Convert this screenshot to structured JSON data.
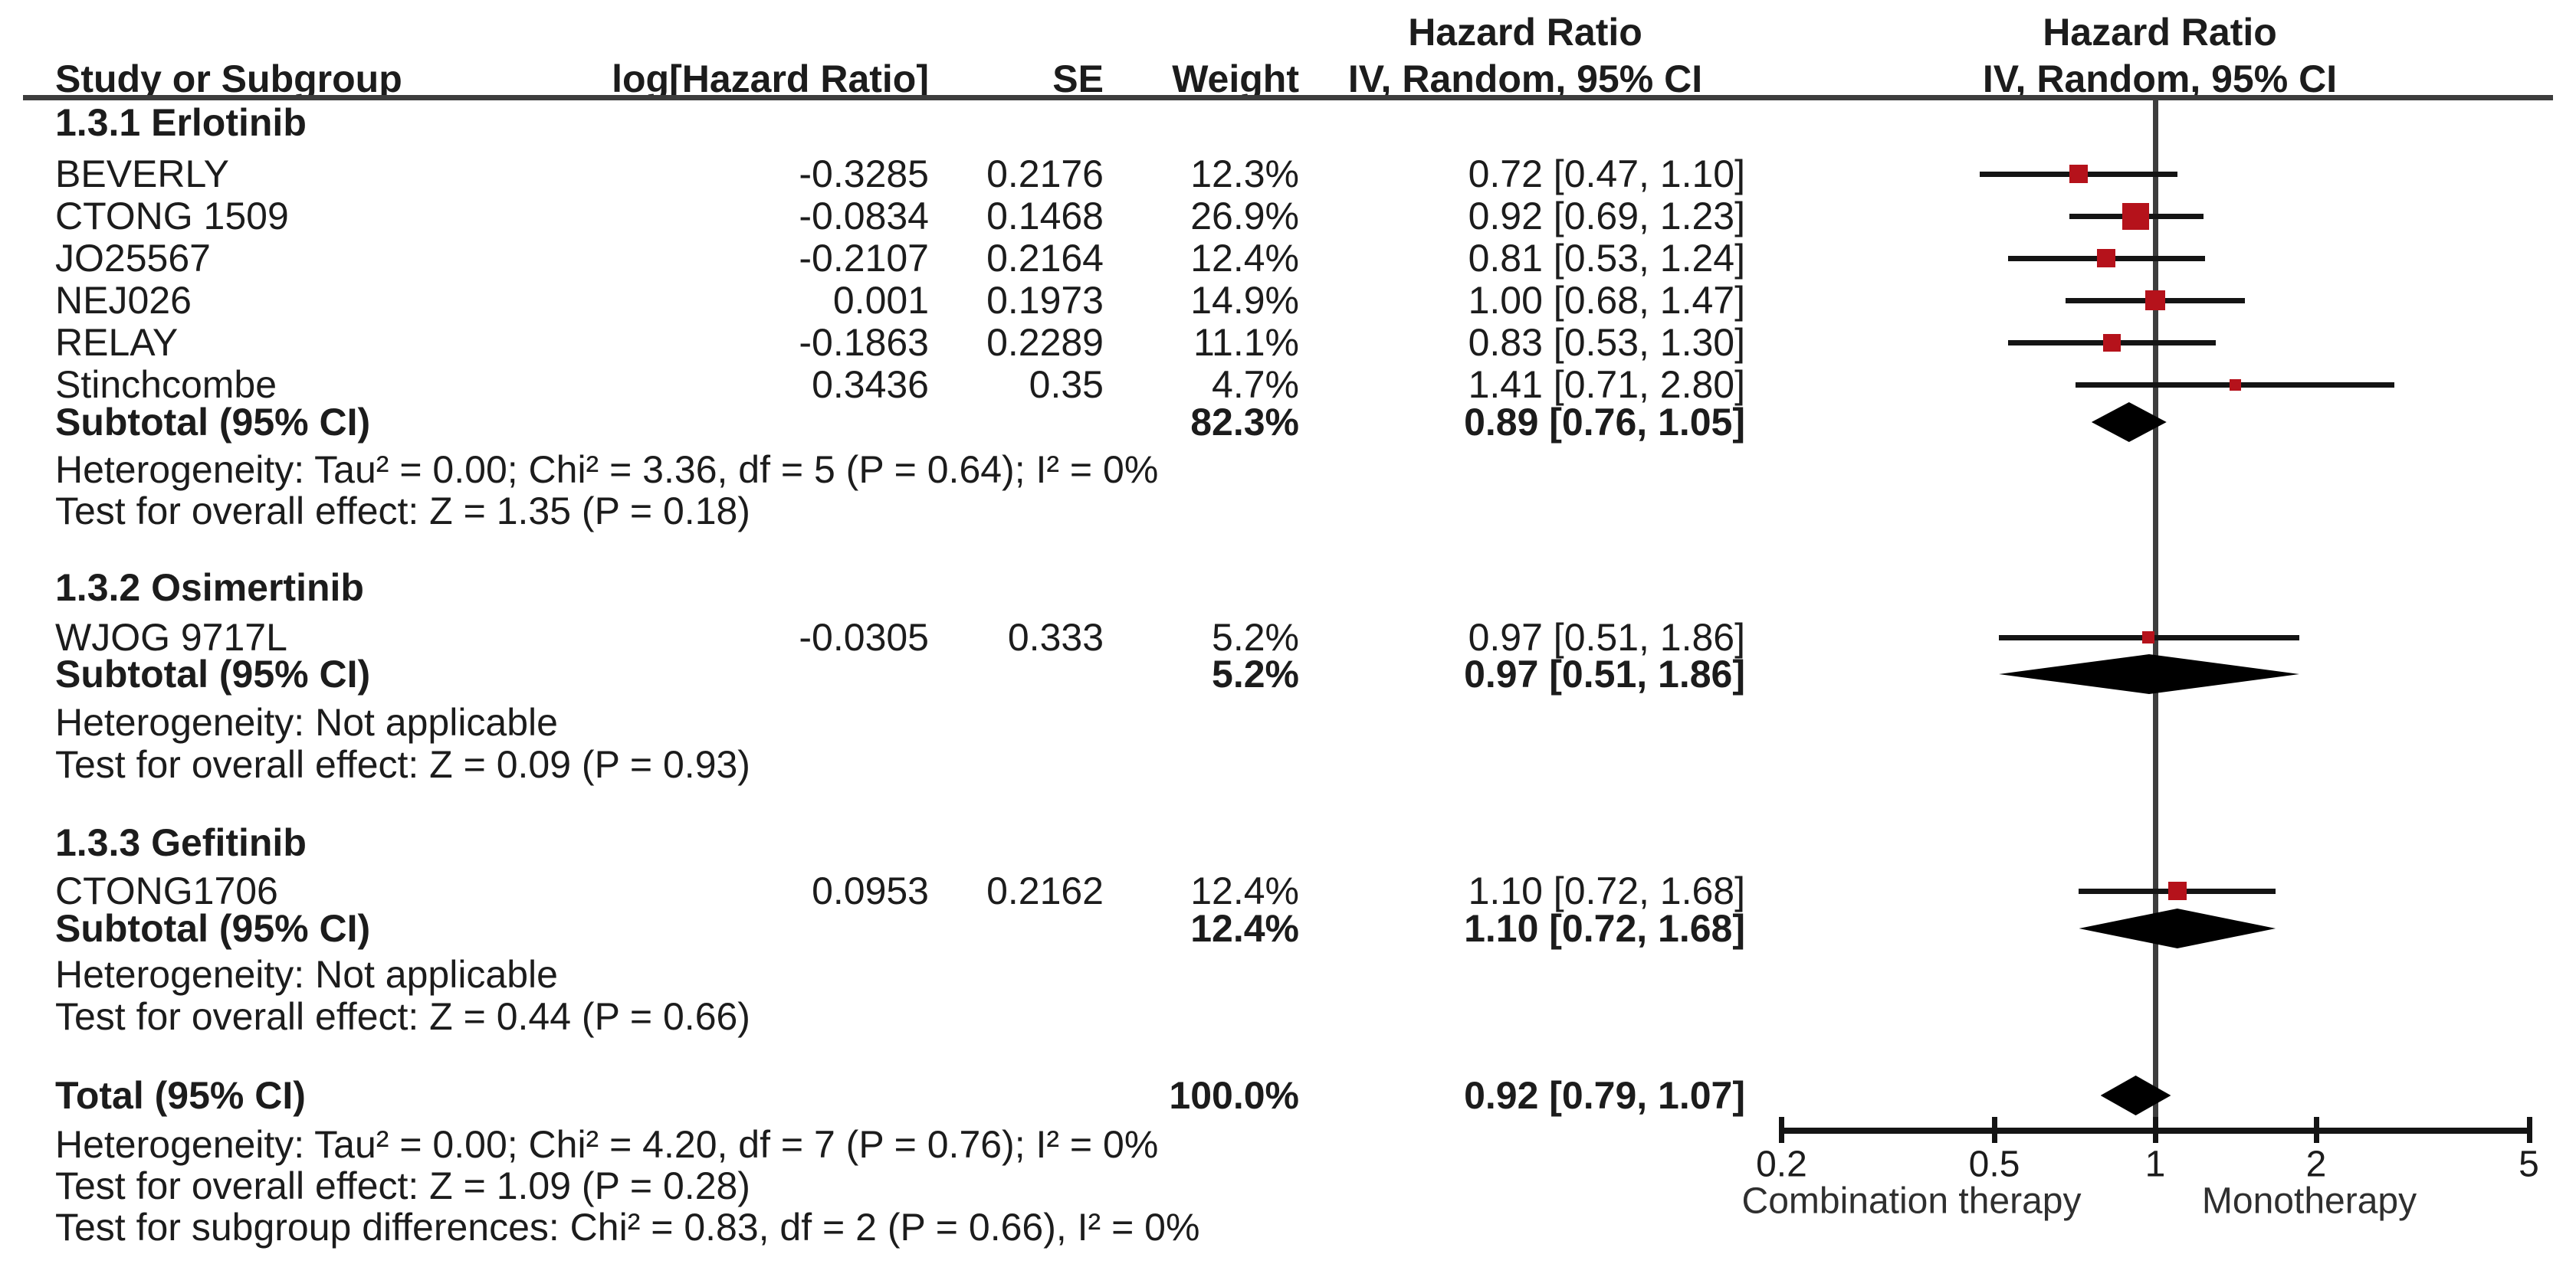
{
  "columns": {
    "study": "Study or Subgroup",
    "log_hr": "log[Hazard Ratio]",
    "se": "SE",
    "weight": "Weight"
  },
  "effect": {
    "line1": "Hazard Ratio",
    "line2": "IV, Random, 95% CI"
  },
  "colors": {
    "marker_red": "#b5121b",
    "diamond_black": "#000000",
    "line_gray": "#3d3d3d"
  },
  "chart_data": {
    "type": "forest-plot",
    "effect_measure": "Hazard Ratio",
    "model": "IV, Random, 95% CI",
    "scale": "log",
    "axis": {
      "ticks": [
        {
          "value": 0.2,
          "label": "0.2"
        },
        {
          "value": 0.5,
          "label": "0.5"
        },
        {
          "value": 1,
          "label": "1"
        },
        {
          "value": 2,
          "label": "2"
        },
        {
          "value": 5,
          "label": "5"
        }
      ],
      "left_label": "Combination therapy",
      "right_label": "Monotherapy"
    },
    "groups": [
      {
        "name": "1.3.1 Erlotinib",
        "studies": [
          {
            "study": "BEVERLY",
            "log_hr": "-0.3285",
            "se": "0.2176",
            "weight": "12.3%",
            "weight_pct": 12.3,
            "ci_text": "0.72 [0.47, 1.10]",
            "hr": 0.72,
            "lo": 0.47,
            "hi": 1.1
          },
          {
            "study": "CTONG 1509",
            "log_hr": "-0.0834",
            "se": "0.1468",
            "weight": "26.9%",
            "weight_pct": 26.9,
            "ci_text": "0.92 [0.69, 1.23]",
            "hr": 0.92,
            "lo": 0.69,
            "hi": 1.23
          },
          {
            "study": "JO25567",
            "log_hr": "-0.2107",
            "se": "0.2164",
            "weight": "12.4%",
            "weight_pct": 12.4,
            "ci_text": "0.81 [0.53, 1.24]",
            "hr": 0.81,
            "lo": 0.53,
            "hi": 1.24
          },
          {
            "study": "NEJ026",
            "log_hr": "0.001",
            "se": "0.1973",
            "weight": "14.9%",
            "weight_pct": 14.9,
            "ci_text": "1.00 [0.68, 1.47]",
            "hr": 1.0,
            "lo": 0.68,
            "hi": 1.47
          },
          {
            "study": "RELAY",
            "log_hr": "-0.1863",
            "se": "0.2289",
            "weight": "11.1%",
            "weight_pct": 11.1,
            "ci_text": "0.83 [0.53, 1.30]",
            "hr": 0.83,
            "lo": 0.53,
            "hi": 1.3
          },
          {
            "study": "Stinchcombe",
            "log_hr": "0.3436",
            "se": "0.35",
            "weight": "4.7%",
            "weight_pct": 4.7,
            "ci_text": "1.41 [0.71, 2.80]",
            "hr": 1.41,
            "lo": 0.71,
            "hi": 2.8
          }
        ],
        "subtotal": {
          "label": "Subtotal (95% CI)",
          "weight": "82.3%",
          "ci_text": "0.89 [0.76, 1.05]",
          "hr": 0.89,
          "lo": 0.76,
          "hi": 1.05
        },
        "heterogeneity": "Heterogeneity: Tau² = 0.00; Chi² = 3.36, df = 5 (P = 0.64); I² = 0%",
        "overall_effect": "Test for overall effect: Z = 1.35 (P = 0.18)"
      },
      {
        "name": "1.3.2 Osimertinib",
        "studies": [
          {
            "study": "WJOG 9717L",
            "log_hr": "-0.0305",
            "se": "0.333",
            "weight": "5.2%",
            "weight_pct": 5.2,
            "ci_text": "0.97 [0.51, 1.86]",
            "hr": 0.97,
            "lo": 0.51,
            "hi": 1.86
          }
        ],
        "subtotal": {
          "label": "Subtotal (95% CI)",
          "weight": "5.2%",
          "ci_text": "0.97 [0.51, 1.86]",
          "hr": 0.97,
          "lo": 0.51,
          "hi": 1.86
        },
        "heterogeneity": "Heterogeneity: Not applicable",
        "overall_effect": "Test for overall effect: Z = 0.09 (P = 0.93)"
      },
      {
        "name": "1.3.3 Gefitinib",
        "studies": [
          {
            "study": "CTONG1706",
            "log_hr": "0.0953",
            "se": "0.2162",
            "weight": "12.4%",
            "weight_pct": 12.4,
            "ci_text": "1.10 [0.72, 1.68]",
            "hr": 1.1,
            "lo": 0.72,
            "hi": 1.68
          }
        ],
        "subtotal": {
          "label": "Subtotal (95% CI)",
          "weight": "12.4%",
          "ci_text": "1.10 [0.72, 1.68]",
          "hr": 1.1,
          "lo": 0.72,
          "hi": 1.68
        },
        "heterogeneity": "Heterogeneity: Not applicable",
        "overall_effect": "Test for overall effect: Z = 0.44 (P = 0.66)"
      }
    ],
    "total": {
      "label": "Total (95% CI)",
      "weight": "100.0%",
      "ci_text": "0.92 [0.79, 1.07]",
      "hr": 0.92,
      "lo": 0.79,
      "hi": 1.07,
      "heterogeneity": "Heterogeneity: Tau² = 0.00; Chi² = 4.20, df = 7 (P = 0.76); I² = 0%",
      "overall_effect": "Test for overall effect: Z = 1.09 (P = 0.28)",
      "subgroup_differences": "Test for subgroup differences: Chi² = 0.83, df = 2 (P = 0.66), I² = 0%"
    }
  }
}
